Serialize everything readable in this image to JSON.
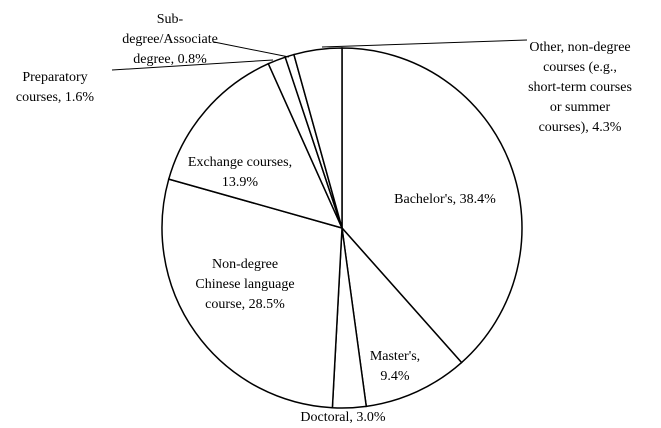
{
  "chart_data": {
    "type": "pie",
    "values": [
      38.4,
      9.4,
      3.0,
      28.5,
      13.9,
      1.6,
      0.8,
      4.3
    ],
    "value_labels": [
      [
        "Bachelor's, 38.4%"
      ],
      [
        "Master's,",
        "9.4%"
      ],
      [
        "Doctoral, 3.0%"
      ],
      [
        "Non-degree",
        "Chinese language",
        "course, 28.5%"
      ],
      [
        "Exchange courses,",
        "13.9%"
      ],
      [
        "Preparatory",
        "courses, 1.6%"
      ],
      [
        "Sub-",
        "degree/Associate",
        "degree, 0.8%"
      ],
      [
        "Other, non-degree",
        "courses (e.g.,",
        "short-term courses",
        "or summer",
        "courses), 4.3%"
      ]
    ],
    "color": "#ffffff",
    "edge_color": "#000000"
  }
}
